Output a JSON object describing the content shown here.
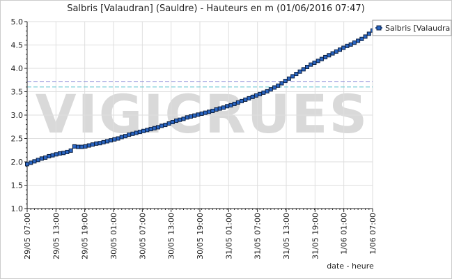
{
  "chart_data": {
    "type": "line",
    "title": "Salbris [Valaudran] (Sauldre) - Hauteurs en m (01/06/2016 07:47)",
    "xlabel": "date - heure",
    "ylabel": "",
    "ylim": [
      1.0,
      5.0
    ],
    "yticks": [
      "1.0",
      "1.5",
      "2.0",
      "2.5",
      "3.0",
      "3.5",
      "4.0",
      "4.5",
      "5.0"
    ],
    "xticks": [
      "29/05 07:00",
      "29/05 13:00",
      "29/05 19:00",
      "30/05 01:00",
      "30/05 07:00",
      "30/05 13:00",
      "30/05 19:00",
      "31/05 01:00",
      "31/05 07:00",
      "31/05 13:00",
      "31/05 19:00",
      "1/06 01:00",
      "1/06 07:00"
    ],
    "x_range": [
      "29/05 07:00",
      "1/06 07:00"
    ],
    "x_step_hours": 1,
    "grid": true,
    "legend_position": "top-right",
    "watermark": "VIGICRUES",
    "reference_lines": [
      {
        "value": 3.72,
        "color": "#8f8fd8",
        "style": "dashed"
      },
      {
        "value": 3.6,
        "color": "#49bcc8",
        "style": "dashed"
      }
    ],
    "series": [
      {
        "name": "Salbris [Valaudra",
        "color": "#1f4e9a",
        "values": [
          1.95,
          1.98,
          2.01,
          2.04,
          2.07,
          2.09,
          2.12,
          2.14,
          2.16,
          2.18,
          2.19,
          2.21,
          2.24,
          2.33,
          2.32,
          2.32,
          2.33,
          2.35,
          2.37,
          2.39,
          2.4,
          2.42,
          2.44,
          2.46,
          2.48,
          2.5,
          2.53,
          2.55,
          2.58,
          2.6,
          2.62,
          2.64,
          2.66,
          2.68,
          2.7,
          2.72,
          2.74,
          2.77,
          2.79,
          2.82,
          2.85,
          2.88,
          2.9,
          2.92,
          2.95,
          2.97,
          2.99,
          3.01,
          3.03,
          3.05,
          3.07,
          3.09,
          3.12,
          3.14,
          3.16,
          3.19,
          3.21,
          3.24,
          3.27,
          3.3,
          3.33,
          3.36,
          3.39,
          3.42,
          3.45,
          3.48,
          3.51,
          3.55,
          3.59,
          3.63,
          3.68,
          3.73,
          3.78,
          3.83,
          3.88,
          3.93,
          3.98,
          4.03,
          4.08,
          4.12,
          4.16,
          4.2,
          4.24,
          4.28,
          4.32,
          4.36,
          4.4,
          4.44,
          4.48,
          4.51,
          4.55,
          4.59,
          4.63,
          4.68,
          4.74,
          4.81
        ]
      }
    ]
  }
}
